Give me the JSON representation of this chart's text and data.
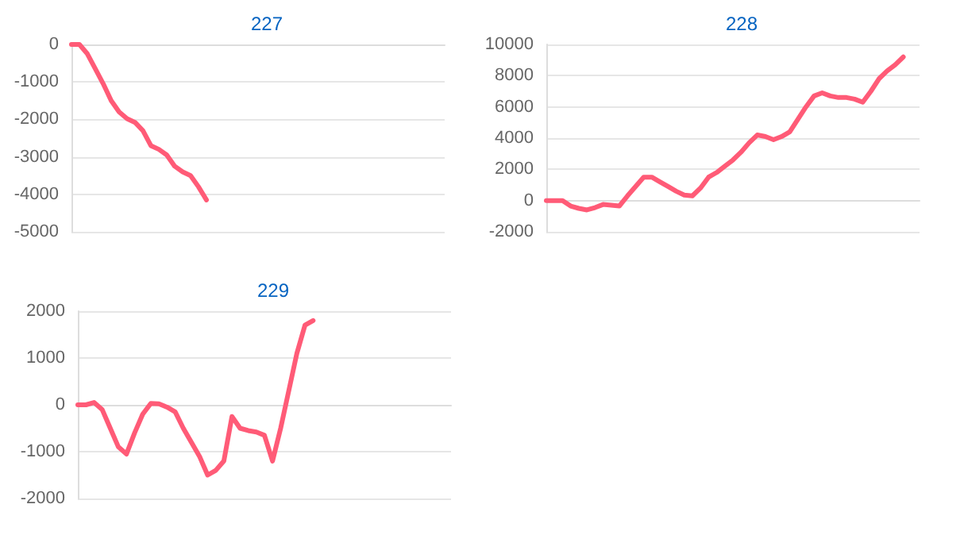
{
  "chart_data": [
    {
      "type": "line",
      "title": "227",
      "categories": [
        null,
        null,
        null,
        null,
        null,
        null,
        null,
        null,
        null,
        null,
        null,
        null,
        null,
        null,
        null,
        null,
        null,
        null,
        null,
        null,
        null,
        null,
        null,
        null,
        null,
        null,
        null,
        null,
        null,
        null,
        null,
        null,
        null,
        null,
        null,
        null,
        null,
        null,
        null,
        null,
        null,
        null,
        null,
        null,
        null,
        null,
        null,
        null
      ],
      "series": [
        {
          "color": "#ff5b77",
          "values": [
            0,
            0,
            -250,
            -650,
            -1050,
            -1500,
            -1800,
            -1980,
            -2080,
            -2300,
            -2700,
            -2800,
            -2950,
            -3250,
            -3400,
            -3500,
            -3800,
            -4150,
            null,
            null,
            null,
            null,
            null,
            null,
            null,
            null,
            null,
            null,
            null,
            null,
            null,
            null,
            null,
            null,
            null,
            null,
            null,
            null,
            null,
            null,
            null,
            null,
            null,
            null,
            null,
            null,
            null,
            null
          ]
        }
      ],
      "ylim": [
        -5000,
        0
      ],
      "yticks": [
        -5000,
        -4000,
        -3000,
        -2000,
        -1000,
        0
      ],
      "grid": "y",
      "tick_labels": "y"
    },
    {
      "type": "line",
      "title": "228",
      "categories": [
        null,
        null,
        null,
        null,
        null,
        null,
        null,
        null,
        null,
        null,
        null,
        null,
        null,
        null,
        null,
        null,
        null,
        null,
        null,
        null,
        null,
        null,
        null,
        null,
        null,
        null,
        null,
        null,
        null,
        null,
        null,
        null,
        null,
        null,
        null,
        null,
        null,
        null,
        null,
        null,
        null,
        null,
        null,
        null,
        null,
        null,
        null
      ],
      "series": [
        {
          "color": "#ff5b77",
          "values": [
            0,
            0,
            0,
            -350,
            -500,
            -600,
            -450,
            -250,
            -300,
            -350,
            300,
            900,
            1500,
            1500,
            1200,
            900,
            600,
            350,
            300,
            800,
            1500,
            1800,
            2200,
            2600,
            3100,
            3700,
            4200,
            4100,
            3900,
            4100,
            4400,
            5200,
            6000,
            6700,
            6900,
            6700,
            6600,
            6600,
            6500,
            6300,
            7000,
            7800,
            8300,
            8700,
            9200,
            null,
            null
          ]
        }
      ],
      "ylim": [
        -2000,
        10000
      ],
      "yticks": [
        -2000,
        0,
        2000,
        4000,
        6000,
        8000,
        10000
      ],
      "grid": "y",
      "tick_labels": "y"
    },
    {
      "type": "line",
      "title": "229",
      "categories": [
        null,
        null,
        null,
        null,
        null,
        null,
        null,
        null,
        null,
        null,
        null,
        null,
        null,
        null,
        null,
        null,
        null,
        null,
        null,
        null,
        null,
        null,
        null,
        null,
        null,
        null,
        null,
        null,
        null,
        null,
        null,
        null,
        null,
        null,
        null,
        null,
        null,
        null,
        null,
        null,
        null,
        null,
        null,
        null,
        null,
        null,
        null
      ],
      "series": [
        {
          "color": "#ff5b77",
          "values": [
            0,
            0,
            50,
            -100,
            -500,
            -900,
            -1050,
            -600,
            -200,
            30,
            20,
            -50,
            -150,
            -500,
            -800,
            -1100,
            -1500,
            -1400,
            -1200,
            -250,
            -500,
            -550,
            -580,
            -650,
            -1200,
            -500,
            300,
            1100,
            1700,
            1800,
            null,
            null,
            null,
            null,
            null,
            null,
            null,
            null,
            null,
            null,
            null,
            null,
            null,
            null,
            null,
            null,
            null
          ]
        }
      ],
      "ylim": [
        -2000,
        2000
      ],
      "yticks": [
        -2000,
        -1000,
        0,
        1000,
        2000
      ],
      "grid": "y",
      "tick_labels": "y"
    }
  ]
}
